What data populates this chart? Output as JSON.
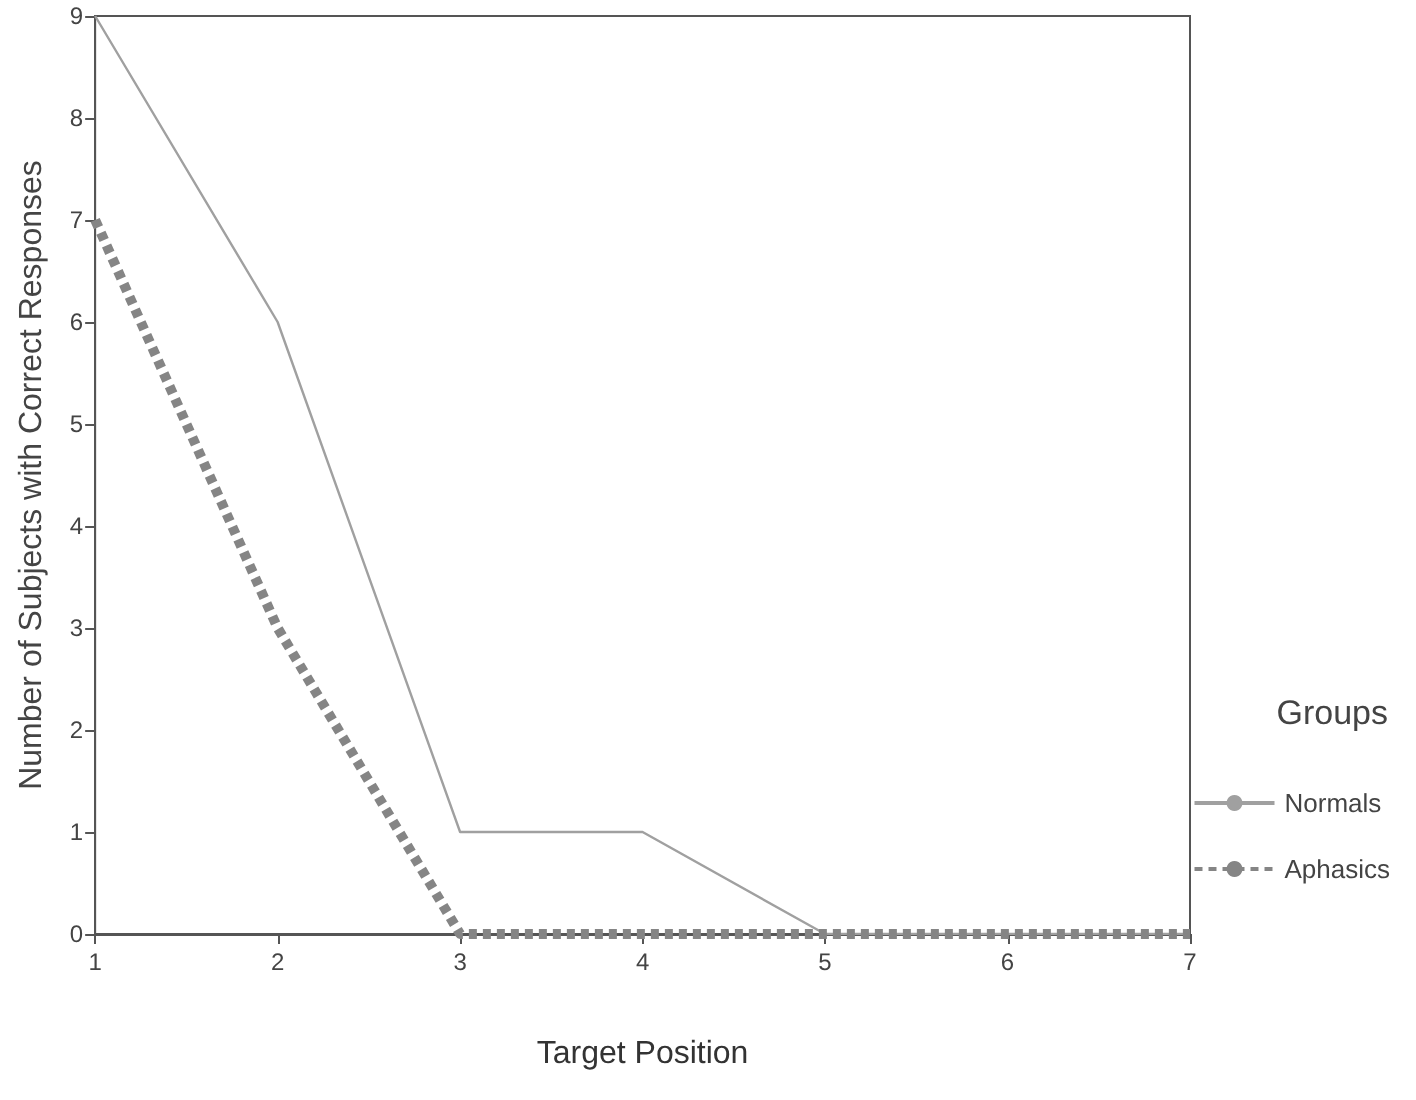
{
  "chart_data": {
    "type": "line",
    "xlabel": "Target Position",
    "ylabel": "Number of Subjects with Correct Responses",
    "legend_title": "Groups",
    "x": [
      1,
      2,
      3,
      4,
      5,
      6,
      7
    ],
    "series": [
      {
        "name": "Normals",
        "color": "#a0a0a0",
        "line_style": "solid",
        "values": [
          9,
          6,
          1,
          1,
          0,
          0,
          0
        ]
      },
      {
        "name": "Aphasics",
        "color": "#858585",
        "line_style": "dotted",
        "values": [
          7,
          3,
          0,
          0,
          0,
          0,
          0
        ]
      }
    ],
    "xlim": [
      1,
      7
    ],
    "xticks": [
      1,
      2,
      3,
      4,
      5,
      6,
      7
    ],
    "ylim": [
      0,
      9
    ],
    "yticks": [
      0,
      1,
      2,
      3,
      4,
      5,
      6,
      7,
      8,
      9
    ],
    "grid": false,
    "legend": "right",
    "marker": "none"
  }
}
